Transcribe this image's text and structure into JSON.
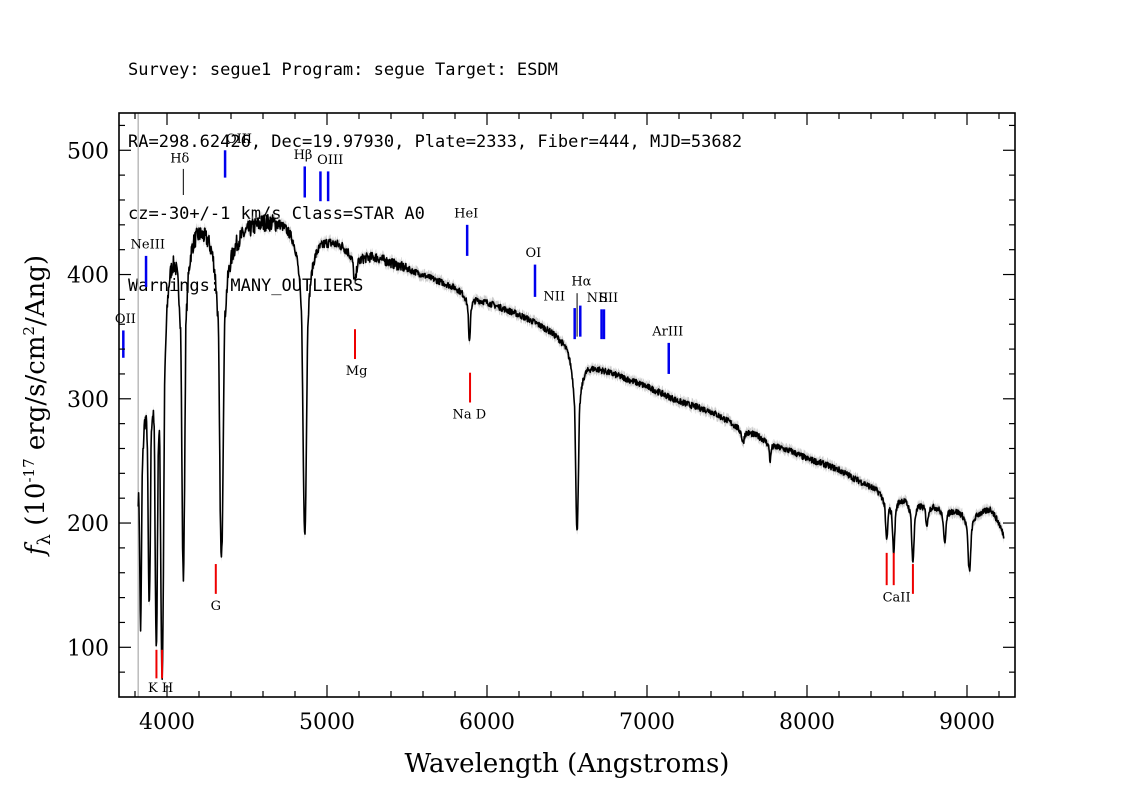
{
  "header": {
    "line1": "Survey: segue1 Program: segue Target: ESDM",
    "line2": "RA=298.62426, Dec=19.97930, Plate=2333, Fiber=444, MJD=53682",
    "line3": "cz=-30+/-1 km/s Class=STAR A0",
    "line4": "Warnings: MANY_OUTLIERS"
  },
  "colors": {
    "emission": "#0000ee",
    "absorption": "#ee0000",
    "spectrum": "#000000",
    "error_band": "#aaaaaa"
  },
  "chart_data": {
    "type": "line",
    "xlabel": "Wavelength (Angstroms)",
    "ylabel": "f_λ (10^-17 erg/s/cm^2/Ang)",
    "xlim": [
      3700,
      9300
    ],
    "ylim": [
      60,
      530
    ],
    "x_ticks": [
      4000,
      5000,
      6000,
      7000,
      8000,
      9000
    ],
    "y_ticks": [
      100,
      200,
      300,
      400,
      500
    ],
    "wavelength_limit_marker": 3820,
    "continuum": [
      [
        3820,
        250
      ],
      [
        3860,
        330
      ],
      [
        3900,
        380
      ],
      [
        3950,
        420
      ],
      [
        4000,
        440
      ],
      [
        4100,
        445
      ],
      [
        4200,
        445
      ],
      [
        4300,
        440
      ],
      [
        4400,
        432
      ],
      [
        4500,
        440
      ],
      [
        4600,
        445
      ],
      [
        4700,
        445
      ],
      [
        4800,
        440
      ],
      [
        4900,
        430
      ],
      [
        5000,
        430
      ],
      [
        5100,
        425
      ],
      [
        5200,
        415
      ],
      [
        5300,
        415
      ],
      [
        5400,
        410
      ],
      [
        5500,
        405
      ],
      [
        5600,
        400
      ],
      [
        5700,
        395
      ],
      [
        5800,
        390
      ],
      [
        5900,
        382
      ],
      [
        6000,
        378
      ],
      [
        6100,
        373
      ],
      [
        6200,
        368
      ],
      [
        6300,
        362
      ],
      [
        6400,
        355
      ],
      [
        6500,
        346
      ],
      [
        6600,
        330
      ],
      [
        6700,
        325
      ],
      [
        6800,
        320
      ],
      [
        6900,
        315
      ],
      [
        7000,
        310
      ],
      [
        7100,
        304
      ],
      [
        7200,
        298
      ],
      [
        7300,
        294
      ],
      [
        7400,
        290
      ],
      [
        7500,
        283
      ],
      [
        7600,
        275
      ],
      [
        7700,
        270
      ],
      [
        7800,
        262
      ],
      [
        7900,
        258
      ],
      [
        8000,
        252
      ],
      [
        8100,
        248
      ],
      [
        8200,
        243
      ],
      [
        8300,
        236
      ],
      [
        8400,
        230
      ],
      [
        8500,
        225
      ],
      [
        8600,
        222
      ],
      [
        8700,
        218
      ],
      [
        8800,
        215
      ],
      [
        8900,
        212
      ],
      [
        9000,
        210
      ],
      [
        9100,
        210
      ],
      [
        9150,
        212
      ],
      [
        9200,
        200
      ],
      [
        9230,
        190
      ]
    ],
    "absorption_features": [
      [
        3835,
        125,
        6
      ],
      [
        3889,
        160,
        8
      ],
      [
        3933,
        155,
        8
      ],
      [
        3970,
        110,
        10
      ],
      [
        4102,
        165,
        10
      ],
      [
        4340,
        172,
        12
      ],
      [
        4861,
        193,
        12
      ],
      [
        5175,
        395,
        10
      ],
      [
        5890,
        345,
        6
      ],
      [
        6563,
        195,
        10
      ],
      [
        7600,
        265,
        8
      ],
      [
        7770,
        250,
        5
      ],
      [
        8498,
        190,
        8
      ],
      [
        8542,
        180,
        8
      ],
      [
        8662,
        170,
        8
      ],
      [
        8750,
        200,
        8
      ],
      [
        8860,
        185,
        8
      ],
      [
        9015,
        162,
        10
      ]
    ],
    "emission_lines": [
      {
        "label": "OII",
        "wave": 3727,
        "y_bottom": 333,
        "y_top": 355
      },
      {
        "label": "NeIII",
        "wave": 3869,
        "y_bottom": 390,
        "y_top": 415
      },
      {
        "label": "Hδ",
        "wave": 4102,
        "y_bottom": 464,
        "y_top": 485
      },
      {
        "label": "OIII",
        "wave": 4363,
        "y_bottom": 478,
        "y_top": 500
      },
      {
        "label": "Hβ",
        "wave": 4861,
        "y_bottom": 462,
        "y_top": 487
      },
      {
        "label": "OIII",
        "wave": 4959,
        "y_bottom": 459,
        "y_top": 483
      },
      {
        "label": "OIII",
        "wave": 5007,
        "y_bottom": 459,
        "y_top": 483
      },
      {
        "label": "HeI",
        "wave": 5876,
        "y_bottom": 415,
        "y_top": 440
      },
      {
        "label": "OI",
        "wave": 6300,
        "y_bottom": 382,
        "y_top": 408
      },
      {
        "label": "NII",
        "wave": 6548,
        "y_bottom": 348,
        "y_top": 373
      },
      {
        "label": "Hα",
        "wave": 6563,
        "y_bottom": 350,
        "y_top": 385
      },
      {
        "label": "NII",
        "wave": 6583,
        "y_bottom": 350,
        "y_top": 375
      },
      {
        "label": "SII",
        "wave": 6716,
        "y_bottom": 348,
        "y_top": 372
      },
      {
        "label": "SII",
        "wave": 6731,
        "y_bottom": 348,
        "y_top": 372
      },
      {
        "label": "ArIII",
        "wave": 7136,
        "y_bottom": 320,
        "y_top": 345
      }
    ],
    "absorption_lines": [
      {
        "label": "K",
        "wave": 3934,
        "y_bottom": 75,
        "y_top": 98
      },
      {
        "label": "H",
        "wave": 3969,
        "y_bottom": 75,
        "y_top": 98
      },
      {
        "label": "G",
        "wave": 4305,
        "y_bottom": 143,
        "y_top": 167
      },
      {
        "label": "Mg",
        "wave": 5175,
        "y_bottom": 332,
        "y_top": 356
      },
      {
        "label": "Na D",
        "wave": 5894,
        "y_bottom": 297,
        "y_top": 321
      },
      {
        "label": "CaII",
        "wave": 8498,
        "y_bottom": 150,
        "y_top": 176
      },
      {
        "label": "CaII",
        "wave": 8542,
        "y_bottom": 150,
        "y_top": 176
      },
      {
        "label": "CaII",
        "wave": 8662,
        "y_bottom": 143,
        "y_top": 167
      }
    ],
    "line_labels": [
      {
        "text": "OII",
        "x": 3740,
        "y": 361,
        "color": "emission"
      },
      {
        "text": "NeIII",
        "x": 3880,
        "y": 421,
        "color": "emission"
      },
      {
        "text": "Hδ",
        "x": 4080,
        "y": 490,
        "color": "emission"
      },
      {
        "text": "OIII",
        "x": 4450,
        "y": 506,
        "color": "emission"
      },
      {
        "text": "Hβ",
        "x": 4850,
        "y": 493,
        "color": "emission"
      },
      {
        "text": "OIII",
        "x": 5020,
        "y": 489,
        "color": "emission"
      },
      {
        "text": "HeI",
        "x": 5870,
        "y": 446,
        "color": "emission"
      },
      {
        "text": "OI",
        "x": 6290,
        "y": 414,
        "color": "emission"
      },
      {
        "text": "NII",
        "x": 6420,
        "y": 379,
        "color": "emission"
      },
      {
        "text": "Hα",
        "x": 6590,
        "y": 391,
        "color": "emission"
      },
      {
        "text": "NII",
        "x": 6690,
        "y": 378,
        "color": "emission"
      },
      {
        "text": "SII",
        "x": 6760,
        "y": 378,
        "color": "emission"
      },
      {
        "text": "ArIII",
        "x": 7130,
        "y": 351,
        "color": "emission"
      },
      {
        "text": "K H",
        "x": 3960,
        "y": 64,
        "color": "absorption"
      },
      {
        "text": "G",
        "x": 4305,
        "y": 130,
        "color": "absorption"
      },
      {
        "text": "Mg",
        "x": 5185,
        "y": 319,
        "color": "absorption"
      },
      {
        "text": "Na  D",
        "x": 5890,
        "y": 284,
        "color": "absorption"
      },
      {
        "text": "CaII",
        "x": 8560,
        "y": 137,
        "color": "absorption"
      }
    ]
  }
}
